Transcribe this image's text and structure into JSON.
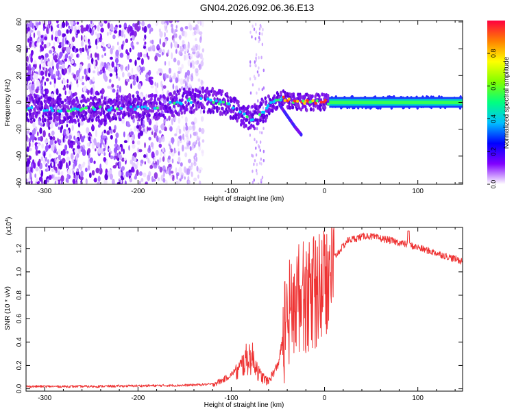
{
  "title": "GN04.2026.092.06.36.E13",
  "chart_data": [
    {
      "type": "heatmap",
      "name": "spectrogram",
      "xlabel": "Height of straight line (km)",
      "ylabel": "Frequency (Hz)",
      "xlim": [
        -320,
        148
      ],
      "ylim": [
        -61,
        61
      ],
      "xticks": [
        -300,
        -200,
        -100,
        0,
        100
      ],
      "yticks": [
        -60,
        -40,
        -20,
        0,
        20,
        40,
        60
      ],
      "ridge": [
        {
          "x": -320,
          "y": -5
        },
        {
          "x": -300,
          "y": -5
        },
        {
          "x": -280,
          "y": -6
        },
        {
          "x": -250,
          "y": -5
        },
        {
          "x": -200,
          "y": -4
        },
        {
          "x": -175,
          "y": -3
        },
        {
          "x": -150,
          "y": 1
        },
        {
          "x": -130,
          "y": 2
        },
        {
          "x": -115,
          "y": 1
        },
        {
          "x": -100,
          "y": -3
        },
        {
          "x": -90,
          "y": -8
        },
        {
          "x": -78,
          "y": -12
        },
        {
          "x": -65,
          "y": -6
        },
        {
          "x": -55,
          "y": 0
        },
        {
          "x": -45,
          "y": 3
        },
        {
          "x": -35,
          "y": 1
        },
        {
          "x": -20,
          "y": 0
        },
        {
          "x": 0,
          "y": 0
        },
        {
          "x": 148,
          "y": 0
        }
      ],
      "branch": [
        {
          "x": -48,
          "y": -2
        },
        {
          "x": -40,
          "y": -10
        },
        {
          "x": -32,
          "y": -18
        },
        {
          "x": -25,
          "y": -24
        }
      ],
      "colorbar": {
        "label": "Normalized spectral amplitude",
        "range": [
          0,
          1
        ],
        "ticks": [
          0.0,
          0.2,
          0.4,
          0.6,
          0.8
        ],
        "tick_labels": [
          "0.0",
          "0.2",
          "0.4",
          "0.6",
          "0.8"
        ],
        "colors": [
          "#ffffff",
          "#8000ff",
          "#0000ff",
          "#00c0ff",
          "#00ff80",
          "#80ff00",
          "#ffff00",
          "#ff8000",
          "#ff0040"
        ]
      }
    },
    {
      "type": "line",
      "name": "snr",
      "xlabel": "Height of straight line (km)",
      "ylabel": "SNR (10 * v/v)",
      "scale_label": "(x10",
      "scale_exp": "4",
      "scale_close": ")",
      "xlim": [
        -320,
        148
      ],
      "ylim": [
        -0.02,
        1.38
      ],
      "xticks": [
        -300,
        -200,
        -100,
        0,
        100
      ],
      "yticks": [
        0.0,
        0.2,
        0.4,
        0.6,
        0.8,
        1.0,
        1.2
      ],
      "ytick_labels": [
        "0.0",
        "0.2",
        "0.4",
        "0.6",
        "0.8",
        "1.0",
        "1.2"
      ],
      "color": "#ee3333",
      "envelope": [
        {
          "x": -320,
          "y": 0.02
        },
        {
          "x": -250,
          "y": 0.02
        },
        {
          "x": -150,
          "y": 0.03
        },
        {
          "x": -120,
          "y": 0.04
        },
        {
          "x": -110,
          "y": 0.07
        },
        {
          "x": -100,
          "y": 0.12
        },
        {
          "x": -92,
          "y": 0.2
        },
        {
          "x": -85,
          "y": 0.3
        },
        {
          "x": -80,
          "y": 0.34
        },
        {
          "x": -75,
          "y": 0.3
        },
        {
          "x": -70,
          "y": 0.15
        },
        {
          "x": -60,
          "y": 0.07
        },
        {
          "x": -50,
          "y": 0.2
        },
        {
          "x": -42,
          "y": 0.55
        },
        {
          "x": -35,
          "y": 0.75
        },
        {
          "x": -25,
          "y": 0.85
        },
        {
          "x": -15,
          "y": 0.82
        },
        {
          "x": 0,
          "y": 0.95
        },
        {
          "x": 10,
          "y": 1.12
        },
        {
          "x": 25,
          "y": 1.27
        },
        {
          "x": 45,
          "y": 1.31
        },
        {
          "x": 70,
          "y": 1.27
        },
        {
          "x": 95,
          "y": 1.22
        },
        {
          "x": 120,
          "y": 1.16
        },
        {
          "x": 148,
          "y": 1.09
        }
      ]
    }
  ]
}
